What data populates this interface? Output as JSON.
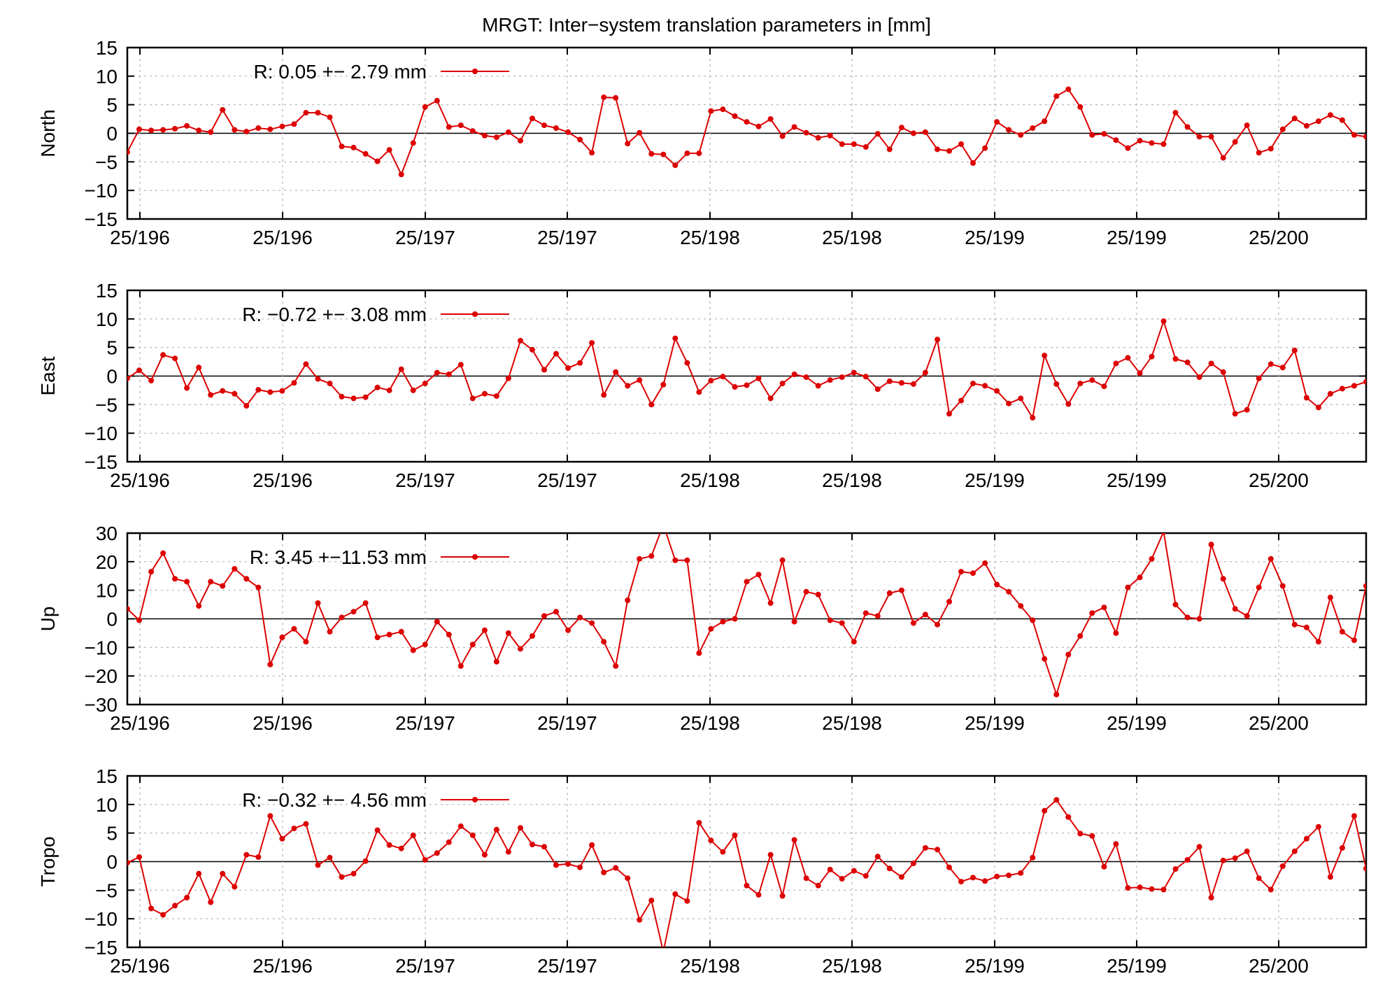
{
  "chart_data": {
    "type": "line",
    "title": "MRGT: Inter−system translation parameters in [mm]",
    "x_tick_labels": [
      "25/196",
      "25/196",
      "25/197",
      "25/197",
      "25/198",
      "25/198",
      "25/199",
      "25/199",
      "25/200"
    ],
    "x_count": 105,
    "series_color": "#dd0000",
    "grid": true,
    "legend_position": "top-left",
    "panels": [
      {
        "ylabel": "North",
        "ylim": [
          -15,
          15
        ],
        "yticks": [
          15,
          10,
          5,
          0,
          -5,
          -10,
          -15
        ],
        "yticks_text": [
          "15",
          "10",
          "5",
          "0",
          "−5",
          "−10",
          "−15"
        ],
        "legend_label": "R:   0.05 +− 2.79 mm",
        "values": [
          -3.3,
          0.7,
          0.5,
          0.6,
          0.8,
          1.3,
          0.5,
          0.2,
          4.1,
          0.6,
          0.3,
          0.9,
          0.7,
          1.2,
          1.6,
          3.6,
          3.6,
          2.8,
          -2.3,
          -2.5,
          -3.6,
          -4.9,
          -2.9,
          -7.2,
          -1.7,
          4.6,
          5.7,
          1.1,
          1.4,
          0.4,
          -0.4,
          -0.7,
          0.2,
          -1.3,
          2.6,
          1.4,
          0.9,
          0.2,
          -1.1,
          -3.4,
          6.3,
          6.2,
          -1.8,
          0.1,
          -3.6,
          -3.7,
          -5.6,
          -3.5,
          -3.5,
          3.9,
          4.2,
          3.0,
          2.0,
          1.2,
          2.5,
          -0.5,
          1.1,
          0.1,
          -0.8,
          -0.4,
          -1.9,
          -1.9,
          -2.4,
          -0.1,
          -2.8,
          1.0,
          0.0,
          0.2,
          -2.8,
          -3.1,
          -1.9,
          -5.2,
          -2.6,
          2.0,
          0.6,
          -0.3,
          0.9,
          2.1,
          6.5,
          7.7,
          4.6,
          -0.3,
          -0.1,
          -1.2,
          -2.6,
          -1.3,
          -1.7,
          -1.9,
          3.6,
          1.1,
          -0.6,
          -0.6,
          -4.3,
          -1.5,
          1.4,
          -3.4,
          -2.7,
          0.7,
          2.6,
          1.3,
          2.1,
          3.2,
          2.3,
          -0.3,
          -0.6
        ]
      },
      {
        "ylabel": "East",
        "ylim": [
          -15,
          15
        ],
        "yticks": [
          15,
          10,
          5,
          0,
          -5,
          -10,
          -15
        ],
        "yticks_text": [
          "15",
          "10",
          "5",
          "0",
          "−5",
          "−10",
          "−15"
        ],
        "legend_label": "R:  −0.72 +− 3.08 mm",
        "values": [
          -0.4,
          1.0,
          -0.8,
          3.7,
          3.1,
          -2.1,
          1.5,
          -3.3,
          -2.6,
          -3.1,
          -5.2,
          -2.4,
          -2.8,
          -2.6,
          -1.2,
          2.1,
          -0.5,
          -1.3,
          -3.6,
          -3.9,
          -3.7,
          -2.0,
          -2.5,
          1.2,
          -2.5,
          -1.3,
          0.6,
          0.3,
          2.0,
          -3.9,
          -3.1,
          -3.5,
          -0.4,
          6.2,
          4.6,
          1.1,
          3.9,
          1.4,
          2.3,
          5.8,
          -3.3,
          0.7,
          -1.7,
          -0.7,
          -5.0,
          -1.5,
          6.6,
          2.3,
          -2.8,
          -0.8,
          -0.1,
          -1.9,
          -1.6,
          -0.4,
          -3.9,
          -1.3,
          0.3,
          -0.2,
          -1.7,
          -0.7,
          -0.2,
          0.6,
          -0.1,
          -2.3,
          -0.9,
          -1.2,
          -1.4,
          0.6,
          6.4,
          -6.6,
          -4.3,
          -1.3,
          -1.7,
          -2.6,
          -4.8,
          -3.9,
          -7.3,
          3.6,
          -1.4,
          -4.9,
          -1.3,
          -0.7,
          -1.8,
          2.2,
          3.2,
          0.5,
          3.4,
          9.6,
          3.0,
          2.4,
          -0.2,
          2.2,
          0.7,
          -6.6,
          -5.9,
          -0.4,
          2.1,
          1.5,
          4.5,
          -3.8,
          -5.5,
          -3.1,
          -2.2,
          -1.7,
          -1.0
        ]
      },
      {
        "ylabel": "Up",
        "ylim": [
          -30,
          30
        ],
        "yticks": [
          30,
          20,
          10,
          0,
          -10,
          -20,
          -30
        ],
        "yticks_text": [
          "30",
          "20",
          "10",
          "0",
          "−10",
          "−20",
          "−30"
        ],
        "legend_label": "R:   3.45 +−11.53 mm",
        "values": [
          3.5,
          -0.5,
          16.5,
          23.0,
          14.0,
          13.0,
          4.5,
          13.0,
          11.5,
          17.5,
          14.0,
          11.0,
          -16.0,
          -6.5,
          -3.5,
          -8.0,
          5.5,
          -4.5,
          0.5,
          2.5,
          5.5,
          -6.5,
          -5.5,
          -4.5,
          -11.0,
          -9.0,
          -1.0,
          -5.5,
          -16.5,
          -9.0,
          -4.0,
          -15.0,
          -5.0,
          -10.5,
          -6.0,
          1.0,
          2.5,
          -4.0,
          0.5,
          -1.5,
          -8.0,
          -16.5,
          6.5,
          21.0,
          22.0,
          33.0,
          20.5,
          20.5,
          -12.0,
          -3.5,
          -1.0,
          0.0,
          13.0,
          15.5,
          5.5,
          20.5,
          -1.0,
          9.5,
          8.5,
          -0.5,
          -1.5,
          -8.0,
          2.0,
          1.0,
          9.0,
          10.0,
          -1.5,
          1.5,
          -2.0,
          6.0,
          16.5,
          16.0,
          19.5,
          12.0,
          9.5,
          4.5,
          -0.5,
          -14.0,
          -26.5,
          -12.5,
          -6.0,
          2.0,
          4.0,
          -5.0,
          11.0,
          14.5,
          21.0,
          30.5,
          5.0,
          0.5,
          0.0,
          26.0,
          14.0,
          3.5,
          1.0,
          11.0,
          21.0,
          11.5,
          -2.0,
          -3.0,
          -8.0,
          7.5,
          -4.5,
          -7.5,
          11.5
        ]
      },
      {
        "ylabel": "Tropo",
        "ylim": [
          -15,
          15
        ],
        "yticks": [
          15,
          10,
          5,
          0,
          -5,
          -10,
          -15
        ],
        "yticks_text": [
          "15",
          "10",
          "5",
          "0",
          "−5",
          "−10",
          "−15"
        ],
        "legend_label": "R:  −0.32 +− 4.56 mm",
        "values": [
          -0.2,
          0.8,
          -8.2,
          -9.3,
          -7.7,
          -6.3,
          -2.1,
          -7.1,
          -2.1,
          -4.4,
          1.2,
          0.8,
          8.0,
          4.0,
          5.8,
          6.6,
          -0.6,
          0.7,
          -2.7,
          -2.1,
          0.1,
          5.5,
          2.9,
          2.3,
          4.6,
          0.3,
          1.5,
          3.4,
          6.2,
          4.6,
          1.2,
          5.6,
          1.7,
          5.9,
          3.0,
          2.6,
          -0.6,
          -0.4,
          -1.0,
          2.9,
          -1.9,
          -1.1,
          -2.9,
          -10.2,
          -6.8,
          -15.8,
          -5.7,
          -6.9,
          6.8,
          3.7,
          1.7,
          4.6,
          -4.2,
          -5.8,
          1.2,
          -6.0,
          3.8,
          -2.9,
          -4.2,
          -1.4,
          -3.0,
          -1.6,
          -2.5,
          0.9,
          -1.2,
          -2.7,
          -0.3,
          2.4,
          2.1,
          -1.0,
          -3.5,
          -2.8,
          -3.4,
          -2.6,
          -2.4,
          -2.0,
          0.7,
          8.9,
          10.8,
          7.8,
          4.9,
          4.5,
          -0.9,
          3.1,
          -4.6,
          -4.5,
          -4.8,
          -4.9,
          -1.3,
          0.3,
          2.6,
          -6.3,
          0.2,
          0.6,
          1.8,
          -2.9,
          -4.9,
          -0.8,
          1.8,
          4.0,
          6.1,
          -2.7,
          2.4,
          8.0,
          -1.2
        ]
      }
    ]
  }
}
